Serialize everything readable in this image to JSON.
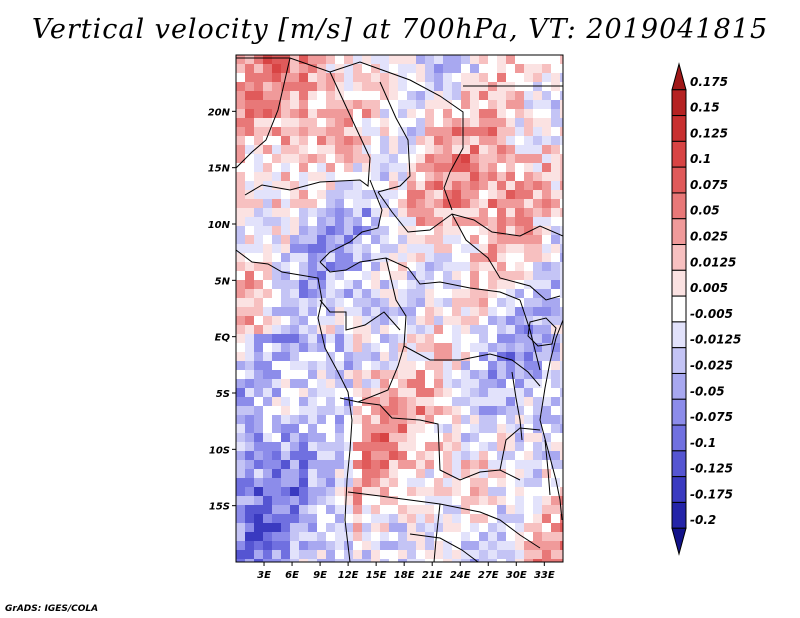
{
  "title": "Vertical velocity [m/s] at 700hPa, VT: 2019041815",
  "footer": "GrADS: IGES/COLA",
  "map": {
    "lon_range": [
      0,
      35
    ],
    "lat_range": [
      -20,
      25
    ],
    "lon_ticks": [
      "3E",
      "6E",
      "9E",
      "12E",
      "15E",
      "18E",
      "21E",
      "24E",
      "27E",
      "30E",
      "33E"
    ],
    "lat_ticks": [
      "20N",
      "15N",
      "10N",
      "5N",
      "EQ",
      "5S",
      "10S",
      "15S"
    ]
  },
  "colorbar": {
    "labels": [
      "0.175",
      "0.15",
      "0.125",
      "0.1",
      "0.075",
      "0.05",
      "0.025",
      "0.0125",
      "0.005",
      "-0.005",
      "-0.0125",
      "-0.025",
      "-0.05",
      "-0.075",
      "-0.1",
      "-0.125",
      "-0.175",
      "-0.2"
    ],
    "colors": [
      "#a01818",
      "#b52222",
      "#c83030",
      "#d84444",
      "#e05a5a",
      "#e87878",
      "#f09a9a",
      "#f7c0c0",
      "#fbe2e2",
      "#ffffff",
      "#e2e2fb",
      "#c4c4f5",
      "#a8a8f0",
      "#8c8cea",
      "#7070e0",
      "#5555d2",
      "#3a3ac0",
      "#2424a8",
      "#12128a"
    ]
  }
}
